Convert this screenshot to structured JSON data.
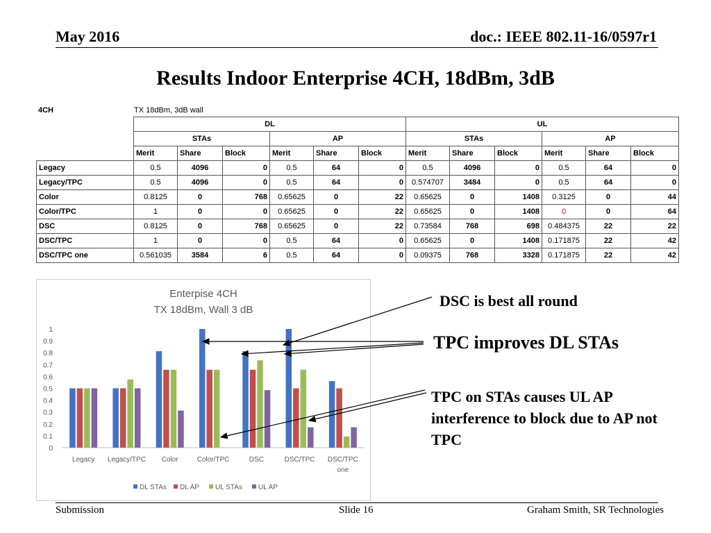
{
  "header": {
    "left": "May 2016",
    "right": "doc.: IEEE 802.11-16/0597r1"
  },
  "slide_title": "Results Indoor Enterprise 4CH, 18dBm, 3dB",
  "table": {
    "corner_label": "4CH",
    "scenario_label": "TX 18dBm, 3dB wall",
    "dl_label": "DL",
    "ul_label": "UL",
    "stas_label": "STAs",
    "ap_label": "AP",
    "metric_headers": [
      "Merit",
      "Share",
      "Block",
      "Merit",
      "Share",
      "Block",
      "Merit",
      "Share",
      "Block",
      "Merit",
      "Share",
      "Block"
    ],
    "rows": [
      {
        "label": "Legacy",
        "cells": [
          "0.5",
          "4096",
          "0",
          "0.5",
          "64",
          "0",
          "0.5",
          "4096",
          "0",
          "0.5",
          "64",
          "0"
        ]
      },
      {
        "label": "Legacy/TPC",
        "cells": [
          "0.5",
          "4096",
          "0",
          "0.5",
          "64",
          "0",
          "0.574707",
          "3484",
          "0",
          "0.5",
          "64",
          "0"
        ]
      },
      {
        "label": "Color",
        "cells": [
          "0.8125",
          "0",
          "768",
          "0.65625",
          "0",
          "22",
          "0.65625",
          "0",
          "1408",
          "0.3125",
          "0",
          "44"
        ]
      },
      {
        "label": "Color/TPC",
        "cells": [
          "1",
          "0",
          "0",
          "0.65625",
          "0",
          "22",
          "0.65625",
          "0",
          "1408",
          "0",
          "0",
          "64"
        ]
      },
      {
        "label": "DSC",
        "cells": [
          "0.8125",
          "0",
          "768",
          "0.65625",
          "0",
          "22",
          "0.73584",
          "768",
          "698",
          "0.484375",
          "22",
          "22"
        ]
      },
      {
        "label": "DSC/TPC",
        "cells": [
          "1",
          "0",
          "0",
          "0.5",
          "64",
          "0",
          "0.65625",
          "0",
          "1408",
          "0.171875",
          "22",
          "42"
        ]
      },
      {
        "label": "DSC/TPC one",
        "cells": [
          "0.561035",
          "3584",
          "6",
          "0.5",
          "64",
          "0",
          "0.09375",
          "768",
          "3328",
          "0.171875",
          "22",
          "42"
        ]
      }
    ]
  },
  "chart_data": {
    "type": "bar",
    "title": "Enterpise 4CH",
    "subtitle": "TX 18dBm, Wall 3 dB",
    "categories": [
      "Legacy",
      "Legacy/TPC",
      "Color",
      "Color/TPC",
      "DSC",
      "DSC/TPC",
      "DSC/TPC one"
    ],
    "series": [
      {
        "name": "DL STAs",
        "color": "#4472c4",
        "values": [
          0.5,
          0.5,
          0.8125,
          1,
          0.8125,
          1,
          0.561035
        ]
      },
      {
        "name": "DL AP",
        "color": "#c0504d",
        "values": [
          0.5,
          0.5,
          0.65625,
          0.65625,
          0.65625,
          0.5,
          0.5
        ]
      },
      {
        "name": "UL STAs",
        "color": "#9bbb59",
        "values": [
          0.5,
          0.574707,
          0.65625,
          0.65625,
          0.73584,
          0.65625,
          0.09375
        ]
      },
      {
        "name": "UL AP",
        "color": "#8064a2",
        "values": [
          0.5,
          0.5,
          0.3125,
          0,
          0.484375,
          0.171875,
          0.171875
        ]
      }
    ],
    "yticks": [
      "0",
      "0.1",
      "0.2",
      "0.3",
      "0.4",
      "0.5",
      "0.6",
      "0.7",
      "0.8",
      "0.9",
      "1"
    ],
    "ylim": [
      0,
      1
    ],
    "grid": false,
    "legend": "bottom"
  },
  "annotations": {
    "a1": "DSC is best all round",
    "a2": "TPC improves DL STAs",
    "a3": "TPC on STAs causes UL AP interference to block due to AP not TPC"
  },
  "footer": {
    "left": "Submission",
    "center": "Slide 16",
    "right": "Graham Smith, SR Technologies"
  }
}
